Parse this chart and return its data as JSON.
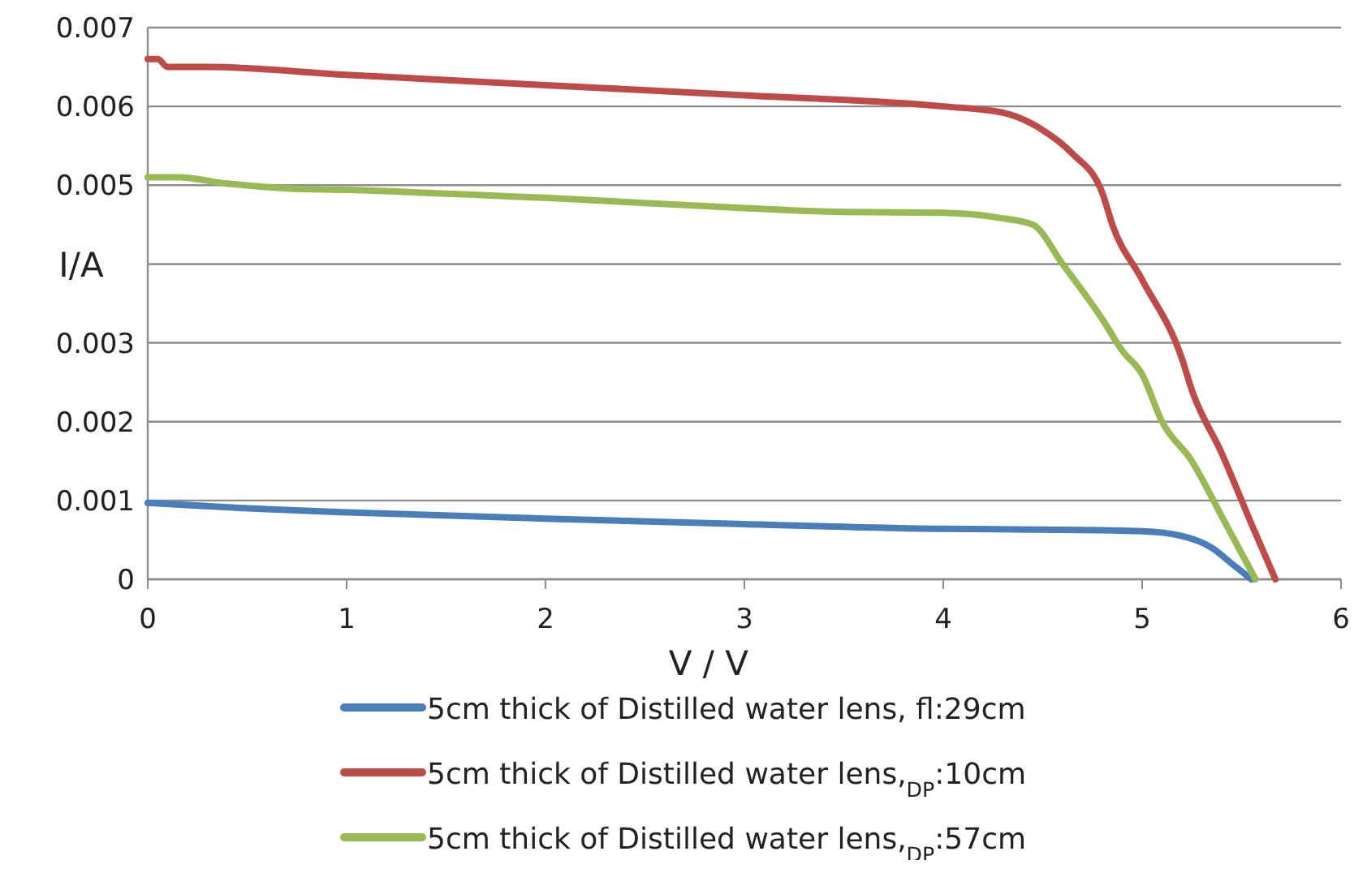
{
  "chart_data": {
    "type": "line",
    "xlabel": "V / V",
    "ylabel": "I/A",
    "xlim": [
      0,
      6
    ],
    "xticks": [
      0,
      1,
      2,
      3,
      4,
      5,
      6
    ],
    "ylim": [
      0,
      0.007
    ],
    "yticks": [
      0,
      0.001,
      0.002,
      0.003,
      {
        "value": 0.004,
        "label": null
      },
      0.005,
      0.006,
      0.007
    ],
    "grid": "y",
    "legend": "bottom",
    "marker": "none",
    "line_style": "solid",
    "series": [
      {
        "name": "5cm thick of Distilled water lens, fl:29cm",
        "color": "#4a7ebb",
        "x": [
          0,
          0.5,
          1,
          2,
          3,
          4,
          4.5,
          5,
          5.2,
          5.35,
          5.45,
          5.55
        ],
        "values": [
          0.00097,
          0.0009,
          0.00085,
          0.00077,
          0.0007,
          0.00064,
          0.00063,
          0.00061,
          0.00055,
          0.0004,
          0.0002,
          0
        ]
      },
      {
        "name": "5cm thick of Distilled water lens,$_{DP}$:10cm",
        "color": "#be4b48",
        "x": [
          0,
          0.05,
          0.1,
          0.3,
          1,
          2,
          3,
          4,
          4.3,
          4.5,
          4.65,
          4.8,
          4.85,
          5,
          5.2,
          5.25,
          5.4,
          5.55,
          5.67
        ],
        "values": [
          0.0066,
          0.0066,
          0.0065,
          0.0065,
          0.0064,
          0.00627,
          0.00614,
          0.006,
          0.00592,
          0.0057,
          0.0054,
          0.0049,
          0.0045,
          0.0038,
          0.0028,
          0.0024,
          0.0016,
          0.0007,
          0
        ]
      },
      {
        "name": "5cm thick of Distilled water lens,$_{DP}$:57cm",
        "color": "#98b954",
        "x": [
          0,
          0.15,
          0.4,
          0.7,
          1,
          2,
          3,
          3.5,
          4,
          4.3,
          4.45,
          4.6,
          4.8,
          4.9,
          5,
          5.1,
          5.25,
          5.4,
          5.57
        ],
        "values": [
          0.0051,
          0.0051,
          0.00502,
          0.00496,
          0.00494,
          0.00484,
          0.00471,
          0.00466,
          0.00465,
          0.00458,
          0.0045,
          0.004,
          0.0033,
          0.0029,
          0.0026,
          0.002,
          0.0015,
          0.0008,
          0
        ]
      }
    ]
  }
}
